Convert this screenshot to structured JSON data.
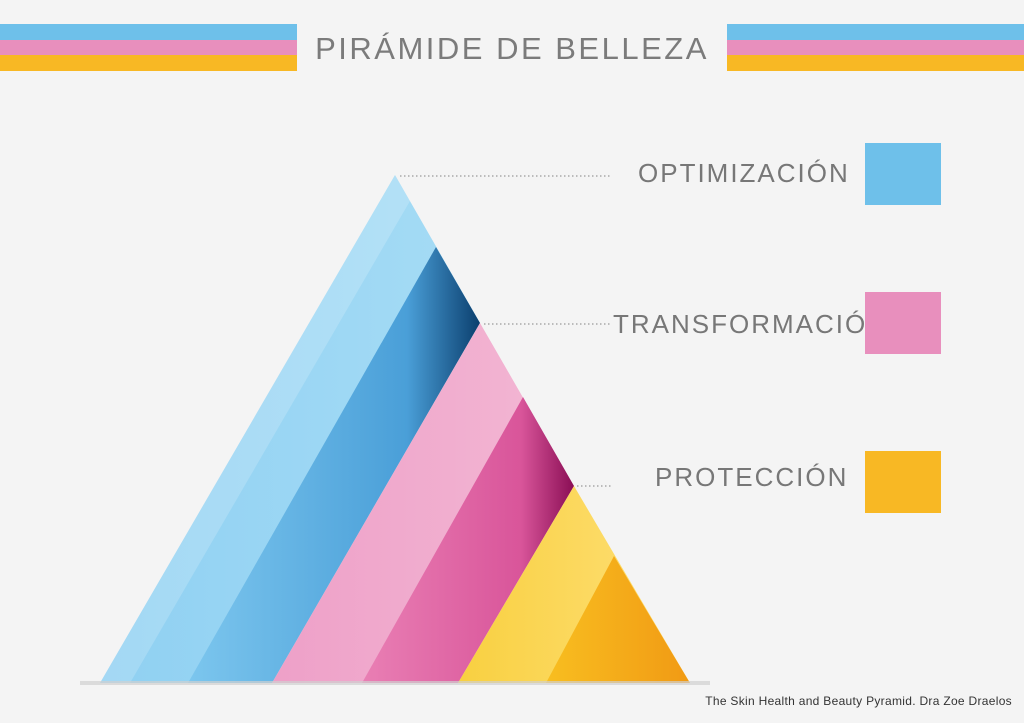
{
  "title": "PIRÁMIDE DE BELLEZA",
  "levels": [
    {
      "label": "OPTIMIZACIÓN",
      "color": "#6ec0ea"
    },
    {
      "label": "TRANSFORMACIÓN",
      "color": "#e88fbd"
    },
    {
      "label": "PROTECCIÓN",
      "color": "#f8b824"
    }
  ],
  "caption": "The Skin Health and Beauty Pyramid. Dra Zoe Draelos"
}
